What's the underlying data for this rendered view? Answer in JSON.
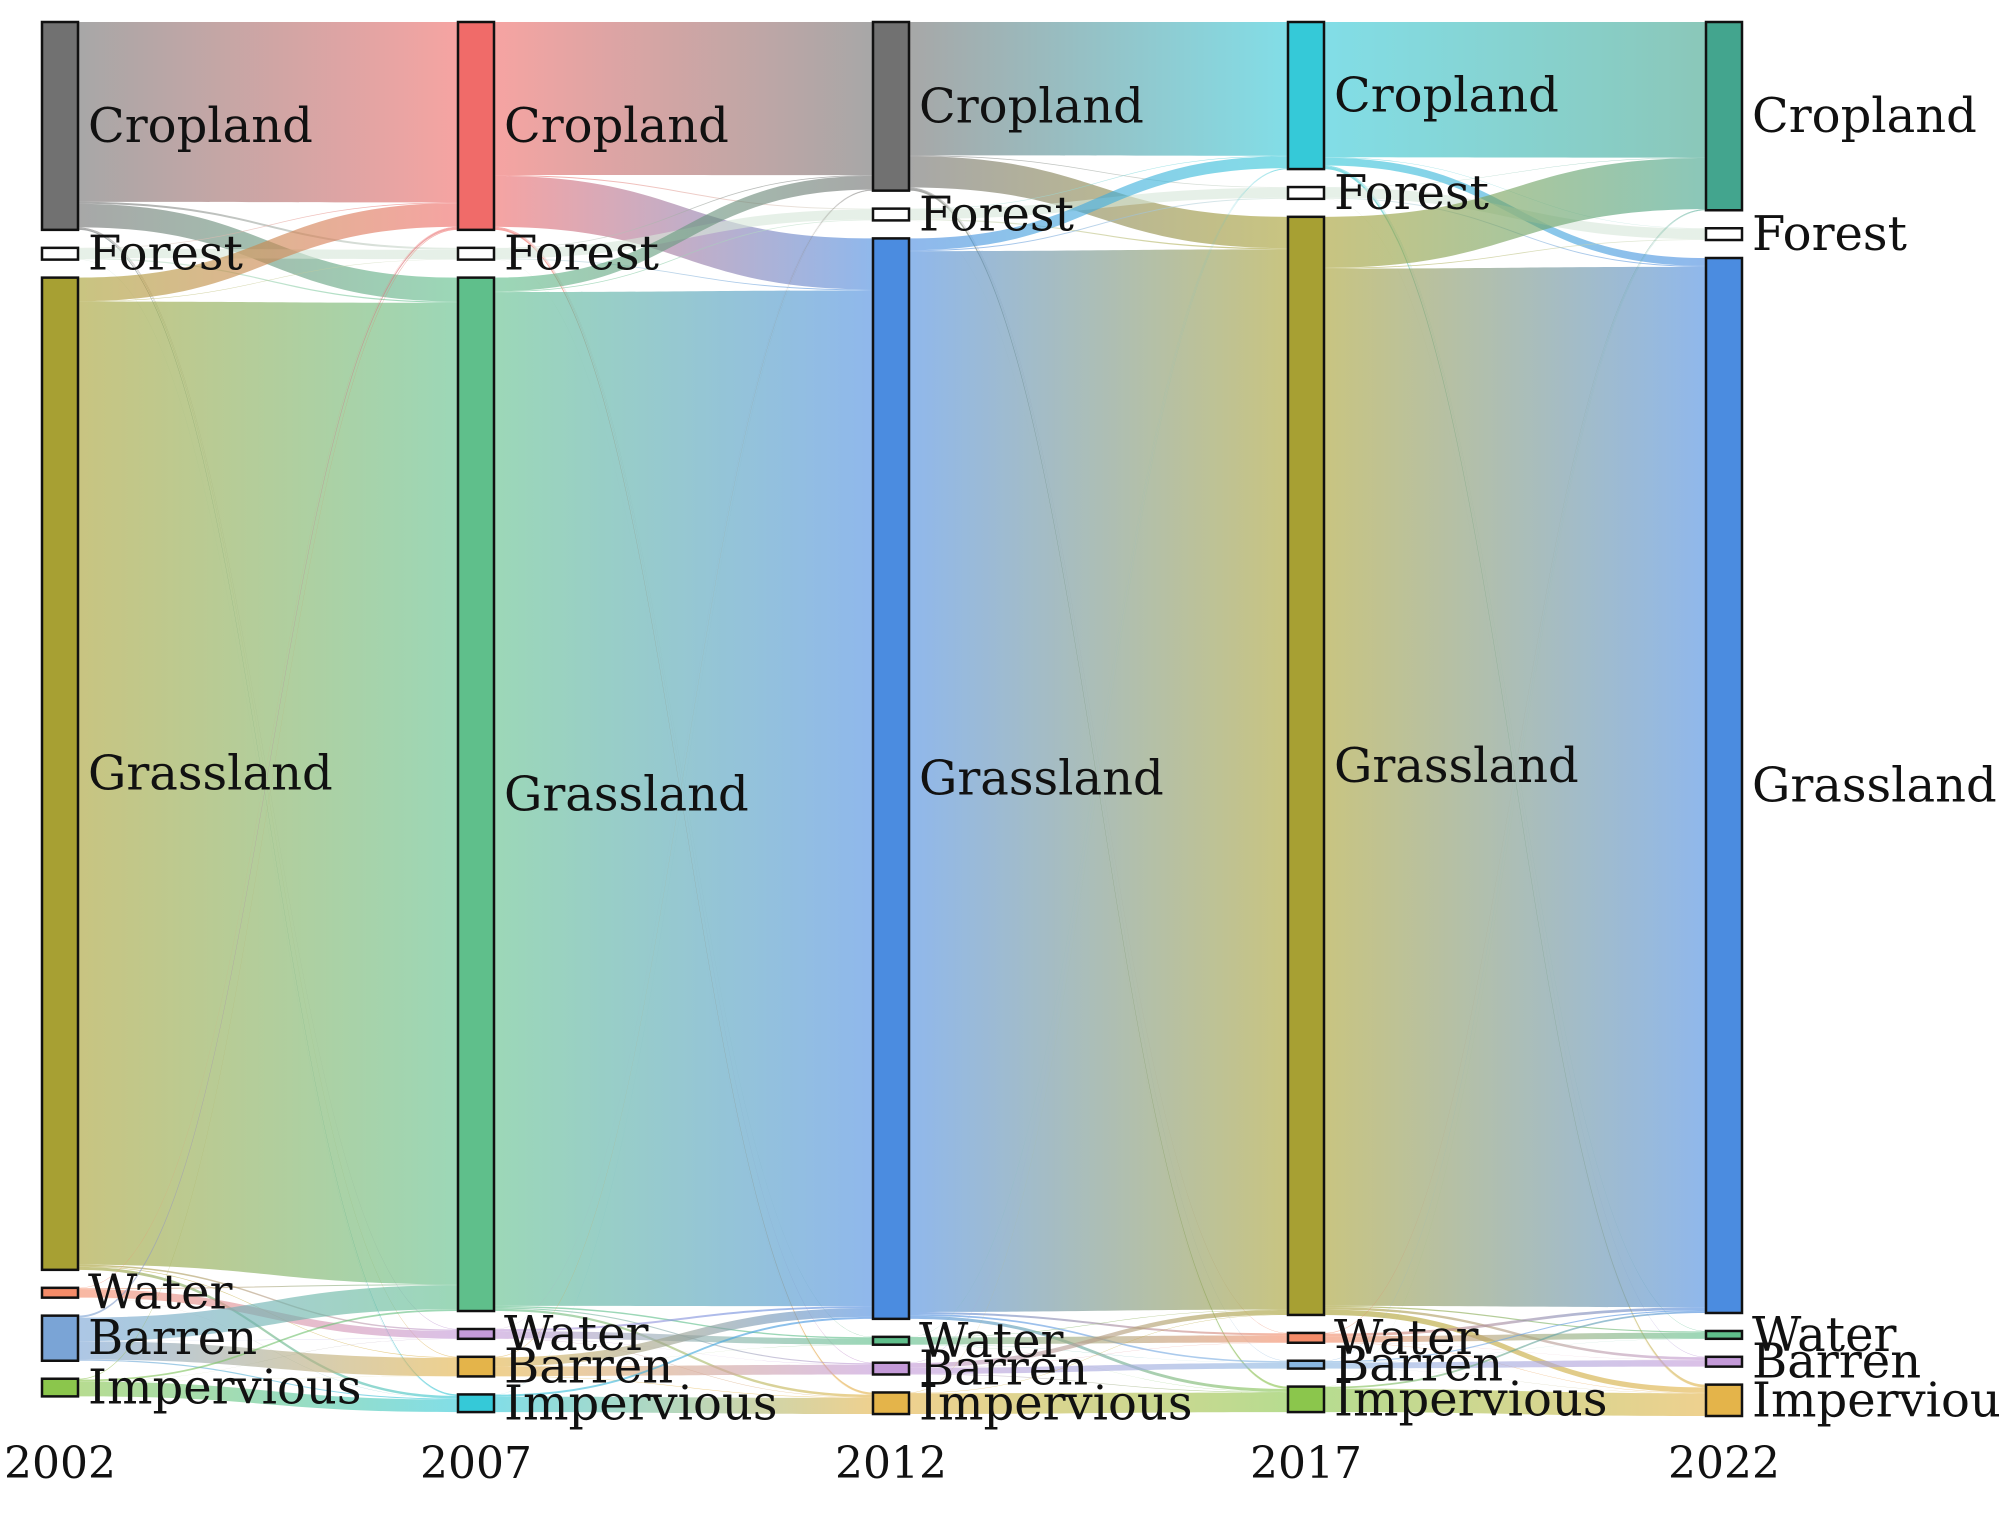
{
  "chart_data": {
    "type": "sankey",
    "title": "",
    "stages": [
      "2002",
      "2007",
      "2012",
      "2017",
      "2022"
    ],
    "categories": [
      "Cropland",
      "Forest",
      "Grassland",
      "Water",
      "Barren",
      "Impervious"
    ],
    "node_values": [
      [
        10.6,
        0.6,
        50.6,
        0.5,
        2.3,
        0.9
      ],
      [
        10.6,
        0.6,
        52.7,
        0.5,
        1.0,
        0.9
      ],
      [
        8.6,
        0.6,
        55.1,
        0.4,
        0.6,
        1.1
      ],
      [
        7.5,
        0.6,
        56.0,
        0.5,
        0.4,
        1.3
      ],
      [
        9.6,
        0.6,
        53.8,
        0.4,
        0.5,
        1.6
      ]
    ],
    "node_colors": [
      [
        "#717171",
        "#ffffff",
        "#a7a033",
        "#f58c69",
        "#7aa4d6",
        "#8bc64c"
      ],
      [
        "#f06b69",
        "#ffffff",
        "#5fbf8b",
        "#c49ad8",
        "#e4b44a",
        "#35c9d8"
      ],
      [
        "#717171",
        "#ffffff",
        "#4b8ce0",
        "#5fbf8b",
        "#c49ad8",
        "#e4b44a"
      ],
      [
        "#35c9d8",
        "#ffffff",
        "#a7a033",
        "#f58c69",
        "#8ab7e2",
        "#8bc64c"
      ],
      [
        "#43a58e",
        "#ffffff",
        "#4b8ce0",
        "#5fbf8b",
        "#c49ad8",
        "#e4b44a"
      ]
    ],
    "flows": [
      [
        [
          9.2,
          0.1,
          1.2,
          0.03,
          0.03,
          0.07
        ],
        [
          0.04,
          0.48,
          0.06,
          0.0,
          0.0,
          0.02
        ],
        [
          1.2,
          0.02,
          49.1,
          0.08,
          0.03,
          0.15
        ],
        [
          0.02,
          0.0,
          0.05,
          0.42,
          0.0,
          0.01
        ],
        [
          0.1,
          0.0,
          1.2,
          0.01,
          0.93,
          0.06
        ],
        [
          0.04,
          0.0,
          0.09,
          0.01,
          0.01,
          0.75
        ]
      ],
      [
        [
          7.8,
          0.05,
          2.6,
          0.02,
          0.03,
          0.1
        ],
        [
          0.04,
          0.5,
          0.05,
          0.0,
          0.0,
          0.01
        ],
        [
          0.7,
          0.04,
          51.7,
          0.08,
          0.06,
          0.12
        ],
        [
          0.01,
          0.0,
          0.1,
          0.36,
          0.01,
          0.02
        ],
        [
          0.03,
          0.0,
          0.45,
          0.01,
          0.49,
          0.02
        ],
        [
          0.01,
          0.0,
          0.1,
          0.0,
          0.0,
          0.79
        ]
      ],
      [
        [
          6.8,
          0.04,
          1.6,
          0.02,
          0.02,
          0.12
        ],
        [
          0.03,
          0.5,
          0.06,
          0.0,
          0.0,
          0.01
        ],
        [
          0.6,
          0.05,
          54.1,
          0.1,
          0.09,
          0.16
        ],
        [
          0.01,
          0.0,
          0.02,
          0.35,
          0.01,
          0.01
        ],
        [
          0.02,
          0.0,
          0.23,
          0.01,
          0.31,
          0.03
        ],
        [
          0.02,
          0.0,
          0.02,
          0.0,
          0.0,
          1.06
        ]
      ],
      [
        [
          6.9,
          0.02,
          0.4,
          0.02,
          0.02,
          0.14
        ],
        [
          0.02,
          0.52,
          0.05,
          0.0,
          0.0,
          0.01
        ],
        [
          2.6,
          0.04,
          52.9,
          0.06,
          0.12,
          0.28
        ],
        [
          0.03,
          0.0,
          0.14,
          0.3,
          0.01,
          0.02
        ],
        [
          0.02,
          0.0,
          0.06,
          0.01,
          0.3,
          0.01
        ],
        [
          0.01,
          0.0,
          0.09,
          0.0,
          0.0,
          1.2
        ]
      ]
    ],
    "xlabel": "",
    "ylabel": ""
  }
}
